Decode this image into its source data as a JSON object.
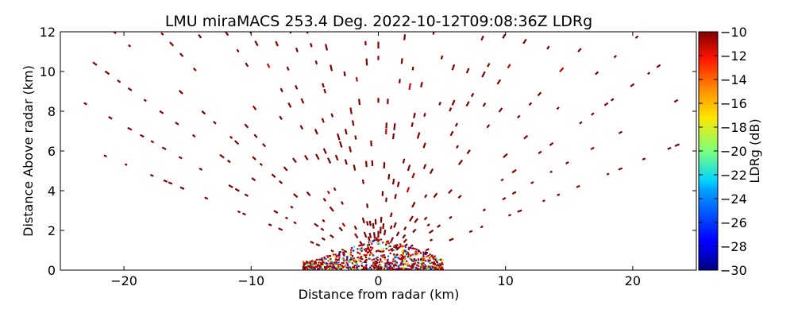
{
  "chart_data": {
    "type": "scatter",
    "title": "LMU miraMACS 253.4 Deg. 2022-10-12T09:08:36Z  LDRg",
    "xlabel": "Distance from radar (km)",
    "ylabel": "Distance Above radar  (km)",
    "xlim": [
      -25,
      25
    ],
    "ylim": [
      0,
      12
    ],
    "xticks": [
      -20,
      -10,
      0,
      10,
      20
    ],
    "xtick_labels": [
      "−20",
      "−10",
      "0",
      "10",
      "20"
    ],
    "yticks": [
      0,
      2,
      4,
      6,
      8,
      10,
      12
    ],
    "ytick_labels": [
      "0",
      "2",
      "4",
      "6",
      "8",
      "10",
      "12"
    ],
    "grid": false,
    "colorbar": {
      "label": "LDRg (dB)",
      "range": [
        -30,
        -10
      ],
      "ticks": [
        -10,
        -12,
        -14,
        -16,
        -18,
        -20,
        -22,
        -24,
        -26,
        -28,
        -30
      ],
      "tick_labels": [
        "−10",
        "−12",
        "−14",
        "−16",
        "−18",
        "−20",
        "−22",
        "−24",
        "−26",
        "−28",
        "−30"
      ],
      "colormap": "jet"
    },
    "scan": {
      "description_values_note": "",
      "range_gates_km": [
        1.5,
        2.5,
        3.5,
        4.5,
        5.5,
        6.5,
        7.5,
        8.5,
        9.5,
        10.5,
        11.5,
        12.5,
        13.5,
        14.5,
        15.5,
        16.5,
        17.5,
        18.5,
        19.5,
        20.5,
        21.5,
        22.5,
        23.5,
        24.5
      ],
      "elevation_angles_deg": [
        165,
        160,
        155,
        150,
        145,
        140,
        135,
        130,
        125,
        120,
        115,
        110,
        105,
        100,
        95,
        90,
        85,
        80,
        75,
        70,
        65,
        60,
        55,
        50,
        45,
        40,
        35,
        30,
        25,
        20,
        15
      ],
      "typical_ldr_db": -10
    },
    "near_radar_echo": {
      "x_range_km": [
        -6,
        5
      ],
      "y_range_km": [
        0,
        1.2
      ],
      "ldr_range_db": [
        -28,
        -10
      ]
    }
  }
}
